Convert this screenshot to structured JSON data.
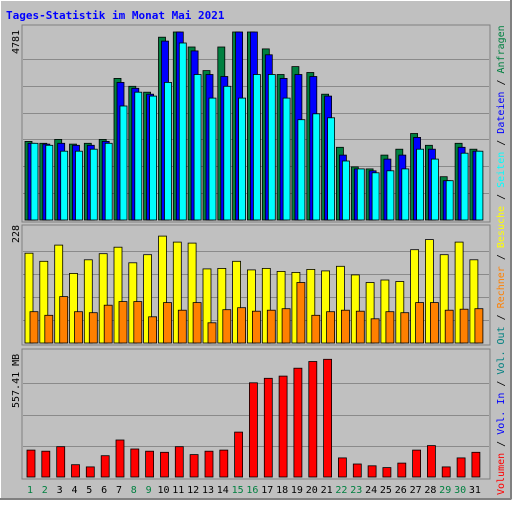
{
  "chart_data": [
    {
      "type": "bar",
      "panel": "requests",
      "title": "Tages-Statistik im Monat Mai 2021",
      "ymax_label": "4781",
      "ylim": [
        0,
        4781
      ],
      "categories": [
        "1",
        "2",
        "3",
        "4",
        "5",
        "6",
        "7",
        "8",
        "9",
        "10",
        "11",
        "12",
        "13",
        "14",
        "15",
        "16",
        "17",
        "18",
        "19",
        "20",
        "21",
        "22",
        "23",
        "24",
        "25",
        "26",
        "27",
        "28",
        "29",
        "30",
        "31"
      ],
      "weekend_days": [
        "1",
        "2",
        "8",
        "9",
        "15",
        "16",
        "22",
        "23",
        "29",
        "30"
      ],
      "series": [
        {
          "name": "Anfragen",
          "color": "#008040",
          "values": [
            2000,
            1950,
            2050,
            1930,
            1950,
            2050,
            3600,
            3400,
            3250,
            4650,
            5000,
            4400,
            3800,
            4400,
            4900,
            5000,
            4350,
            3700,
            3900,
            3750,
            3200,
            1850,
            1350,
            1300,
            1650,
            1800,
            2200,
            1900,
            1100,
            1950,
            1800
          ]
        },
        {
          "name": "Dateien",
          "color": "#0000ff",
          "values": [
            1950,
            1930,
            1950,
            1900,
            1900,
            2000,
            3500,
            3350,
            3200,
            4550,
            4900,
            4300,
            3700,
            3650,
            4850,
            4900,
            4200,
            3600,
            3700,
            3650,
            3150,
            1650,
            1300,
            1250,
            1550,
            1650,
            2100,
            1800,
            1000,
            1850,
            1750
          ]
        },
        {
          "name": "Seiten",
          "color": "#00ffff",
          "values": [
            1950,
            1900,
            1750,
            1750,
            1800,
            1950,
            2900,
            3250,
            3150,
            3500,
            4500,
            3700,
            3100,
            3400,
            3100,
            3700,
            3700,
            3100,
            2550,
            2700,
            2600,
            1500,
            1300,
            1200,
            1250,
            1300,
            1800,
            1550,
            1000,
            1700,
            1750
          ]
        }
      ]
    },
    {
      "type": "bar",
      "panel": "visits",
      "ymax_label": "228",
      "ylim": [
        0,
        228
      ],
      "categories": [
        "1",
        "2",
        "3",
        "4",
        "5",
        "6",
        "7",
        "8",
        "9",
        "10",
        "11",
        "12",
        "13",
        "14",
        "15",
        "16",
        "17",
        "18",
        "19",
        "20",
        "21",
        "22",
        "23",
        "24",
        "25",
        "26",
        "27",
        "28",
        "29",
        "30",
        "31"
      ],
      "series": [
        {
          "name": "Besuche",
          "color": "#ffff00",
          "values": [
            178,
            162,
            194,
            138,
            165,
            177,
            190,
            159,
            175,
            212,
            200,
            198,
            147,
            148,
            162,
            145,
            148,
            142,
            140,
            146,
            143,
            152,
            135,
            120,
            125,
            122,
            185,
            205,
            175,
            200,
            165
          ]
        },
        {
          "name": "Rechner",
          "color": "#ff8000",
          "values": [
            62,
            55,
            92,
            62,
            60,
            75,
            82,
            82,
            52,
            80,
            65,
            80,
            40,
            66,
            70,
            63,
            65,
            68,
            120,
            55,
            62,
            65,
            63,
            48,
            62,
            60,
            80,
            80,
            65,
            67,
            68
          ]
        }
      ]
    },
    {
      "type": "bar",
      "panel": "volume",
      "ymax_label": "557.41 MB",
      "ylim": [
        0,
        557.41
      ],
      "categories": [
        "1",
        "2",
        "3",
        "4",
        "5",
        "6",
        "7",
        "8",
        "9",
        "10",
        "11",
        "12",
        "13",
        "14",
        "15",
        "16",
        "17",
        "18",
        "19",
        "20",
        "21",
        "22",
        "23",
        "24",
        "25",
        "26",
        "27",
        "28",
        "29",
        "30",
        "31"
      ],
      "series": [
        {
          "name": "Volumen",
          "color": "#ff0000",
          "values": [
            120,
            115,
            135,
            55,
            45,
            95,
            165,
            125,
            115,
            110,
            135,
            100,
            115,
            120,
            200,
            420,
            440,
            450,
            485,
            515,
            525,
            85,
            58,
            50,
            42,
            62,
            120,
            140,
            45,
            85,
            110
          ]
        }
      ]
    }
  ],
  "right_label": {
    "prefix_1": "Volumen",
    "sep_1": " / ",
    "vol_in": "Vol. In",
    "sep_2": " / ",
    "vol_out": "Vol. Out",
    "sep_3": " / ",
    "rechner": "Rechner",
    "sep_4": " / ",
    "besuche": "Besuche",
    "sep_5": " / ",
    "seiten": "Seiten",
    "sep_6": " / ",
    "dateien": "Dateien",
    "sep_7": " / ",
    "anfragen": "Anfragen"
  },
  "colors": {
    "background": "#c0c0c0",
    "frame": "#ffffff",
    "title": "#0000ff",
    "weekday_label": "#000000",
    "weekend_label": "#008040",
    "gridline": "#808080",
    "label_vol": "#ff0000",
    "label_volin": "#0000ff",
    "label_volout": "#008080",
    "label_rechner": "#ff8000",
    "label_besuche": "#ffff00",
    "label_seiten": "#00ffff",
    "label_dateien": "#0000ff",
    "label_anfragen": "#008040"
  }
}
